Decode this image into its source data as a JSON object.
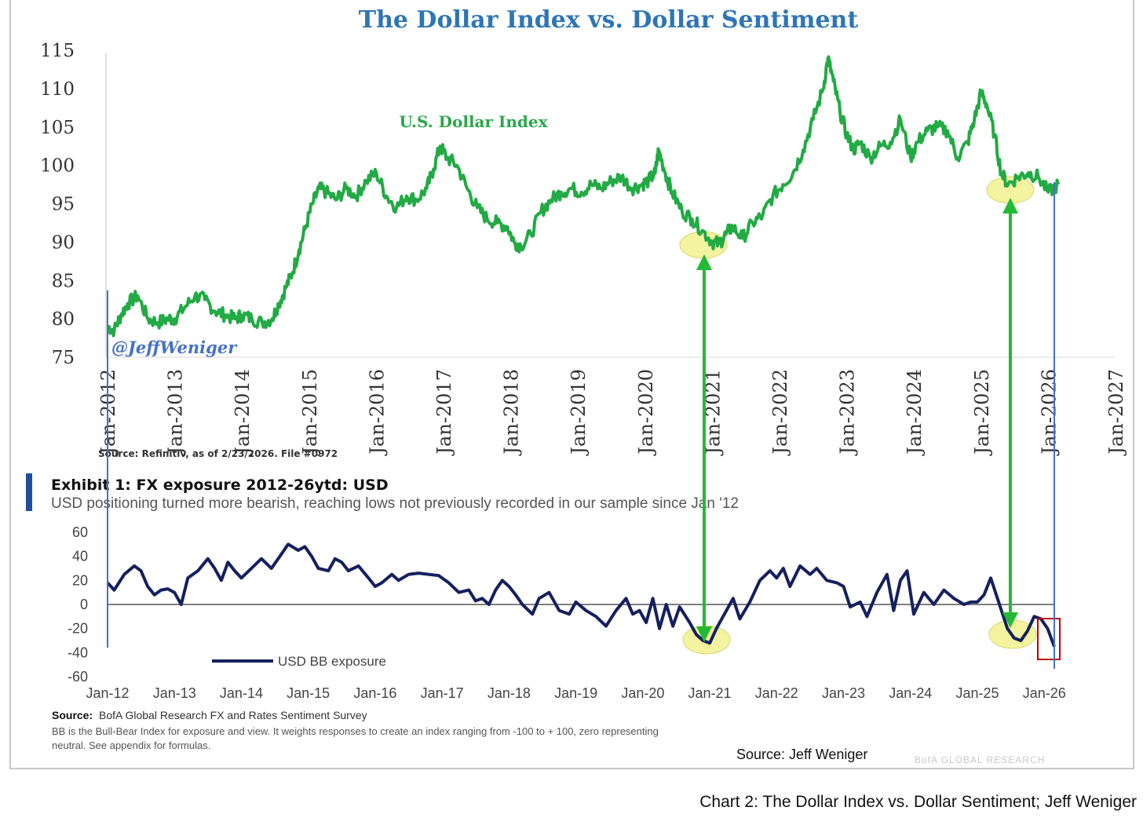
{
  "caption": "Chart 2: The Dollar Index vs. Dollar Sentiment; Jeff Weniger",
  "colors": {
    "title": "#2e75b6",
    "dxy_line": "#22aa44",
    "dxy_label": "#2aa84a",
    "bb_line": "#14205e",
    "blue_marker": "#4472c4",
    "arrow": "#22bb33",
    "highlight": "#f3f3a0",
    "red_box": "#c00000"
  },
  "chart_data": [
    {
      "type": "line",
      "title": "The Dollar Index vs. Dollar Sentiment",
      "series_label": "U.S. Dollar Index",
      "watermark": "@JeffWeniger",
      "source": "Source: Refinitiv, as of 2/23/2026. File #0972",
      "ylim": [
        75,
        115
      ],
      "yticks": [
        115,
        110,
        105,
        100,
        95,
        90,
        85,
        80,
        75
      ],
      "xlim": [
        2012,
        2027
      ],
      "xticks": [
        "Jan-2012",
        "Jan-2013",
        "Jan-2014",
        "Jan-2015",
        "Jan-2016",
        "Jan-2017",
        "Jan-2018",
        "Jan-2019",
        "Jan-2020",
        "Jan-2021",
        "Jan-2022",
        "Jan-2023",
        "Jan-2024",
        "Jan-2025",
        "Jan-2026",
        "Jan-2027"
      ],
      "series": [
        {
          "name": "U.S. Dollar Index",
          "x": [
            2012.0,
            2012.1,
            2012.2,
            2012.3,
            2012.45,
            2012.6,
            2012.75,
            2012.9,
            2013.0,
            2013.15,
            2013.3,
            2013.45,
            2013.6,
            2013.75,
            2013.9,
            2014.0,
            2014.15,
            2014.3,
            2014.45,
            2014.55,
            2014.65,
            2014.75,
            2014.85,
            2014.95,
            2015.05,
            2015.15,
            2015.25,
            2015.4,
            2015.55,
            2015.7,
            2015.85,
            2016.0,
            2016.15,
            2016.3,
            2016.45,
            2016.6,
            2016.75,
            2016.85,
            2016.95,
            2017.05,
            2017.2,
            2017.35,
            2017.5,
            2017.65,
            2017.8,
            2017.95,
            2018.05,
            2018.15,
            2018.3,
            2018.45,
            2018.6,
            2018.75,
            2018.9,
            2019.05,
            2019.2,
            2019.35,
            2019.5,
            2019.65,
            2019.8,
            2019.95,
            2020.05,
            2020.15,
            2020.2,
            2020.3,
            2020.4,
            2020.55,
            2020.7,
            2020.85,
            2021.0,
            2021.1,
            2021.2,
            2021.3,
            2021.45,
            2021.6,
            2021.75,
            2021.9,
            2022.05,
            2022.2,
            2022.35,
            2022.5,
            2022.65,
            2022.72,
            2022.8,
            2022.9,
            2023.0,
            2023.1,
            2023.2,
            2023.35,
            2023.5,
            2023.65,
            2023.8,
            2023.95,
            2024.05,
            2024.2,
            2024.35,
            2024.5,
            2024.65,
            2024.8,
            2024.9,
            2025.0,
            2025.08,
            2025.2,
            2025.3,
            2025.4,
            2025.55,
            2025.7,
            2025.85,
            2026.0,
            2026.15
          ],
          "values": [
            79,
            78.5,
            80.5,
            82,
            83,
            80,
            79.5,
            80,
            80,
            81.5,
            83,
            82.5,
            81,
            80.5,
            80,
            80.5,
            80,
            79.5,
            80,
            82,
            84,
            86,
            89,
            92,
            95,
            97,
            96.5,
            95.5,
            97,
            96,
            98,
            99,
            96,
            94.5,
            96,
            95.5,
            97,
            99.5,
            102.5,
            101,
            100,
            97,
            94.5,
            93,
            92.5,
            92,
            90,
            89.5,
            91,
            94,
            95.5,
            96.5,
            97,
            96.5,
            97.5,
            97,
            98,
            98.5,
            97,
            97.5,
            98,
            99,
            102,
            99,
            96.5,
            94,
            93,
            91.5,
            90,
            89.8,
            91,
            92,
            90.5,
            92.5,
            93.5,
            96,
            97.5,
            99,
            102,
            106,
            110,
            114,
            111,
            107,
            104,
            102,
            103,
            101,
            102.5,
            103,
            106,
            101,
            103,
            104.5,
            105,
            104.5,
            101,
            103,
            106,
            109.5,
            108,
            104,
            99,
            97.5,
            98.5,
            99,
            98.5,
            96.5,
            97.5
          ]
        }
      ]
    },
    {
      "type": "line",
      "exhibit_title": "Exhibit 1: FX exposure 2012-26ytd: USD",
      "subtitle": "USD positioning turned more bearish, reaching lows not previously recorded in our sample since Jan '12",
      "legend": "USD BB exposure",
      "source_label": "Source:",
      "source_text": "BofA Global Research FX and Rates Sentiment Survey",
      "note": "BB is the Bull-Bear Index for exposure and view. It weights responses to create an index ranging from -100 to + 100, zero representing neutral. See appendix for formulas.",
      "credit": "Source: Jeff Weniger",
      "brand": "BofA GLOBAL RESEARCH",
      "ylim": [
        -60,
        60
      ],
      "yticks": [
        60,
        40,
        20,
        0,
        -20,
        -40,
        -60
      ],
      "xlim": [
        2012,
        2026.5
      ],
      "xticks": [
        "Jan-12",
        "Jan-13",
        "Jan-14",
        "Jan-15",
        "Jan-16",
        "Jan-17",
        "Jan-18",
        "Jan-19",
        "Jan-20",
        "Jan-21",
        "Jan-22",
        "Jan-23",
        "Jan-24",
        "Jan-25",
        "Jan-26"
      ],
      "series": [
        {
          "name": "USD BB exposure",
          "x": [
            2012.0,
            2012.1,
            2012.25,
            2012.4,
            2012.5,
            2012.6,
            2012.7,
            2012.8,
            2012.9,
            2013.0,
            2013.1,
            2013.2,
            2013.35,
            2013.5,
            2013.6,
            2013.7,
            2013.8,
            2013.9,
            2014.0,
            2014.15,
            2014.3,
            2014.45,
            2014.6,
            2014.7,
            2014.85,
            2014.95,
            2015.05,
            2015.15,
            2015.3,
            2015.4,
            2015.5,
            2015.6,
            2015.75,
            2015.9,
            2016.0,
            2016.1,
            2016.25,
            2016.35,
            2016.5,
            2016.65,
            2016.8,
            2016.95,
            2017.1,
            2017.25,
            2017.4,
            2017.5,
            2017.6,
            2017.7,
            2017.8,
            2017.9,
            2018.0,
            2018.1,
            2018.2,
            2018.35,
            2018.45,
            2018.6,
            2018.75,
            2018.9,
            2019.0,
            2019.15,
            2019.3,
            2019.45,
            2019.6,
            2019.75,
            2019.85,
            2019.95,
            2020.05,
            2020.15,
            2020.25,
            2020.35,
            2020.45,
            2020.55,
            2020.7,
            2020.8,
            2020.9,
            2021.0,
            2021.1,
            2021.2,
            2021.35,
            2021.45,
            2021.6,
            2021.75,
            2021.9,
            2022.0,
            2022.1,
            2022.2,
            2022.35,
            2022.5,
            2022.6,
            2022.75,
            2022.9,
            2023.0,
            2023.1,
            2023.25,
            2023.35,
            2023.5,
            2023.65,
            2023.75,
            2023.85,
            2023.95,
            2024.05,
            2024.2,
            2024.35,
            2024.5,
            2024.65,
            2024.8,
            2024.9,
            2025.0,
            2025.1,
            2025.2,
            2025.3,
            2025.45,
            2025.55,
            2025.65,
            2025.75,
            2025.85,
            2025.95,
            2026.05,
            2026.15
          ],
          "values": [
            18,
            12,
            25,
            32,
            28,
            15,
            8,
            12,
            13,
            10,
            0,
            22,
            28,
            38,
            30,
            20,
            35,
            28,
            22,
            30,
            38,
            30,
            42,
            50,
            45,
            48,
            40,
            30,
            28,
            38,
            35,
            28,
            32,
            22,
            15,
            18,
            25,
            20,
            25,
            26,
            25,
            24,
            18,
            10,
            12,
            3,
            5,
            0,
            12,
            20,
            15,
            8,
            0,
            -8,
            5,
            10,
            -5,
            -8,
            2,
            -5,
            -10,
            -18,
            -5,
            5,
            -8,
            -5,
            -15,
            5,
            -20,
            0,
            -18,
            -2,
            -15,
            -25,
            -30,
            -32,
            -20,
            -10,
            5,
            -12,
            2,
            20,
            28,
            22,
            30,
            15,
            32,
            25,
            30,
            20,
            18,
            15,
            -2,
            2,
            -10,
            10,
            25,
            -5,
            20,
            28,
            -8,
            10,
            0,
            12,
            5,
            0,
            2,
            2,
            8,
            22,
            5,
            -20,
            -28,
            -30,
            -22,
            -10,
            -12,
            -20,
            -35
          ]
        }
      ]
    }
  ],
  "annotations": {
    "arrows": [
      "Jan-21 sentiment low to Jan-21 DXY low",
      "2025 sentiment low to 2025 DXY low"
    ]
  }
}
